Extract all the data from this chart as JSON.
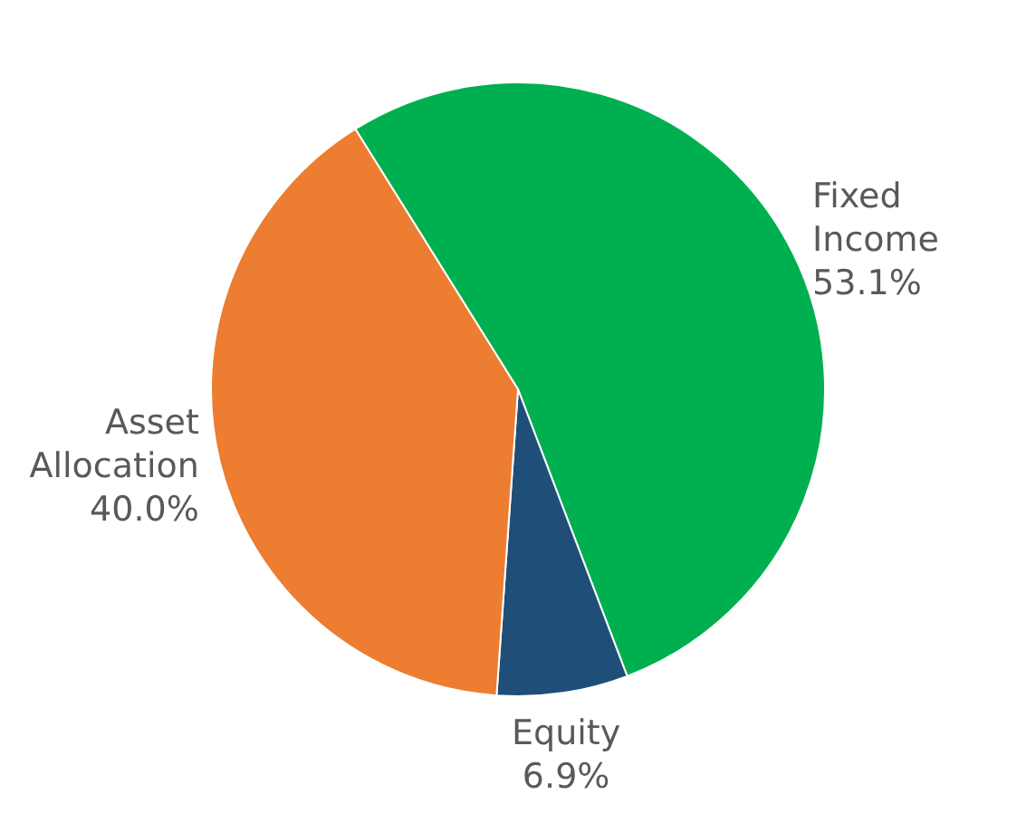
{
  "chart_data": {
    "type": "pie",
    "categories": [
      "Fixed Income",
      "Equity",
      "Asset Allocation"
    ],
    "values": [
      53.1,
      6.9,
      40.0
    ],
    "colors": [
      "#00b050",
      "#1f4e79",
      "#ed7d31"
    ],
    "value_labels": [
      "53.1%",
      "6.9%",
      "40.0%"
    ],
    "legend": false
  }
}
